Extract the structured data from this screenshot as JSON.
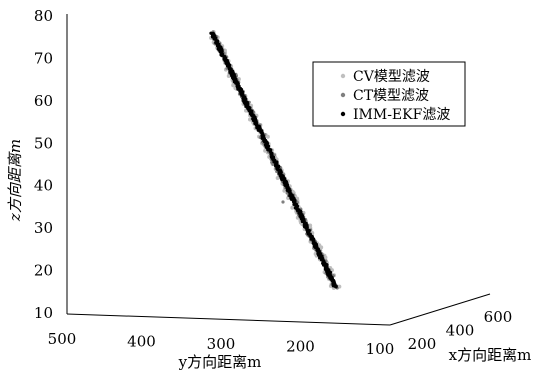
{
  "chart_data": {
    "type": "scatter",
    "title": "",
    "ylabel": "y方向距离m",
    "xlabel": "x方向距离m",
    "zlabel": "z方向距离m",
    "axes": {
      "z": {
        "ticks": [
          "10",
          "20",
          "30",
          "40",
          "50",
          "60",
          "70",
          "80"
        ],
        "range": [
          10,
          80
        ]
      },
      "y": {
        "ticks": [
          "500",
          "400",
          "300",
          "200",
          "100"
        ],
        "range": [
          500,
          100
        ]
      },
      "x": {
        "ticks": [
          "200",
          "400",
          "600"
        ],
        "range": [
          200,
          600
        ]
      }
    },
    "legend": {
      "placement": "right",
      "entries": [
        {
          "label": "CV模型滤波",
          "color": "#bfbfbf"
        },
        {
          "label": "CT模型滤波",
          "color": "#7f7f7f"
        },
        {
          "label": "IMM-EKF滤波",
          "color": "#000000"
        }
      ]
    },
    "series": [
      {
        "name": "CV模型滤波",
        "color": "#bfbfbf",
        "trajectory": {
          "start": {
            "y": 320,
            "z": 76
          },
          "end": {
            "y": 167,
            "z": 16
          }
        }
      },
      {
        "name": "CT模型滤波",
        "color": "#7f7f7f",
        "trajectory": {
          "start": {
            "y": 320,
            "z": 76
          },
          "end": {
            "y": 167,
            "z": 16
          }
        }
      },
      {
        "name": "IMM-EKF滤波",
        "color": "#000000",
        "trajectory": {
          "start": {
            "y": 320,
            "z": 76
          },
          "end": {
            "y": 167,
            "z": 16
          }
        }
      }
    ]
  }
}
